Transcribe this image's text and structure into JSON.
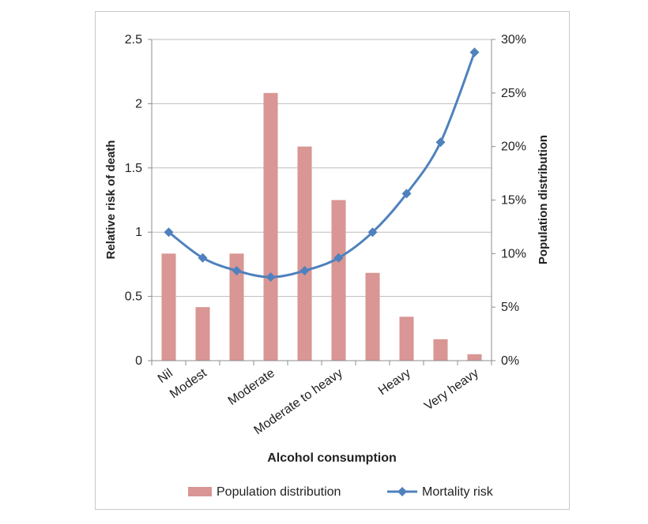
{
  "chart_data": {
    "type": "bar+line",
    "categories": [
      "Nil",
      "Modest",
      "",
      "Moderate",
      "",
      "Moderate to heavy",
      "",
      "Heavy",
      "",
      "Very heavy"
    ],
    "series": [
      {
        "name": "Population distribution",
        "type": "bar",
        "axis": "right",
        "values": [
          10,
          5,
          10,
          25,
          20,
          15,
          8.2,
          4.1,
          2,
          0.6
        ],
        "color": "#d99694"
      },
      {
        "name": "Mortality risk",
        "type": "line",
        "axis": "left",
        "values": [
          1.0,
          0.8,
          0.7,
          0.65,
          0.7,
          0.8,
          1.0,
          1.3,
          1.7,
          2.4
        ],
        "color": "#4f81bd"
      }
    ],
    "xlabel": "Alcohol consumption",
    "ylabel": "Relative risk of death",
    "y2label": "Population distribution",
    "ylim": [
      0,
      2.5
    ],
    "y2lim": [
      0,
      30
    ],
    "yticks": [
      "0",
      "0.5",
      "1",
      "1.5",
      "2",
      "2.5"
    ],
    "y2ticks": [
      "0%",
      "5%",
      "10%",
      "15%",
      "20%",
      "25%",
      "30%"
    ],
    "grid": true,
    "legend": "bottom"
  }
}
